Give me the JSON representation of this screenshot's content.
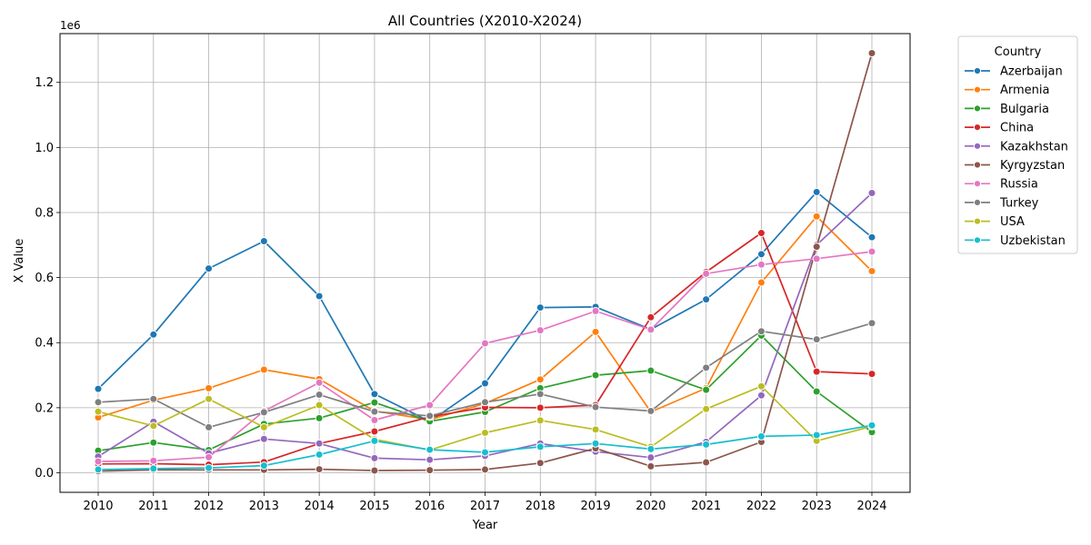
{
  "chart_data": {
    "type": "line",
    "title": "All Countries (X2010-X2024)",
    "xlabel": "Year",
    "ylabel": "X Value",
    "offset_label": "1e6",
    "ylim": [
      -60000,
      1350000
    ],
    "yticks": [
      0,
      200000,
      400000,
      600000,
      800000,
      1000000,
      1200000
    ],
    "ytick_labels": [
      "0.0",
      "0.2",
      "0.4",
      "0.6",
      "0.8",
      "1.0",
      "1.2"
    ],
    "grid": true,
    "legend_title": "Country",
    "legend_position": "outside-right",
    "categories": [
      "2010",
      "2011",
      "2012",
      "2013",
      "2014",
      "2015",
      "2016",
      "2017",
      "2018",
      "2019",
      "2020",
      "2021",
      "2022",
      "2023",
      "2024"
    ],
    "series": [
      {
        "name": "Azerbaijan",
        "color": "#1f77b4",
        "values": [
          258000,
          425000,
          628000,
          712000,
          543000,
          242000,
          158000,
          275000,
          508000,
          510000,
          441000,
          533000,
          672000,
          863000,
          724000
        ]
      },
      {
        "name": "Armenia",
        "color": "#ff7f0e",
        "values": [
          170000,
          223000,
          260000,
          317000,
          288000,
          190000,
          163000,
          213000,
          287000,
          433000,
          187000,
          260000,
          585000,
          788000,
          620000
        ]
      },
      {
        "name": "Bulgaria",
        "color": "#2ca02c",
        "values": [
          68000,
          93000,
          70000,
          150000,
          168000,
          216000,
          158000,
          187000,
          260000,
          300000,
          314000,
          255000,
          422000,
          250000,
          125000
        ]
      },
      {
        "name": "China",
        "color": "#d62728",
        "values": [
          27000,
          28000,
          25000,
          33000,
          90000,
          127000,
          172000,
          201000,
          200000,
          208000,
          478000,
          617000,
          737000,
          311000,
          304000
        ]
      },
      {
        "name": "Kazakhstan",
        "color": "#9467bd",
        "values": [
          50000,
          157000,
          60000,
          104000,
          90000,
          45000,
          40000,
          52000,
          90000,
          65000,
          47000,
          95000,
          238000,
          700000,
          860000
        ]
      },
      {
        "name": "Kyrgyzstan",
        "color": "#8c564b",
        "values": [
          5000,
          9000,
          9000,
          9000,
          11000,
          7000,
          8000,
          10000,
          30000,
          75000,
          20000,
          32000,
          95000,
          695000,
          1290000
        ]
      },
      {
        "name": "Russia",
        "color": "#e377c2",
        "values": [
          35000,
          37000,
          48000,
          190000,
          277000,
          162000,
          208000,
          398000,
          438000,
          497000,
          440000,
          612000,
          640000,
          658000,
          680000
        ]
      },
      {
        "name": "Turkey",
        "color": "#7f7f7f",
        "values": [
          217000,
          227000,
          140000,
          186000,
          240000,
          188000,
          175000,
          217000,
          242000,
          202000,
          190000,
          323000,
          435000,
          410000,
          460000
        ]
      },
      {
        "name": "USA",
        "color": "#bcbd22",
        "values": [
          188000,
          144000,
          227000,
          140000,
          208000,
          103000,
          70000,
          123000,
          161000,
          133000,
          80000,
          196000,
          266000,
          98000,
          143000
        ]
      },
      {
        "name": "Uzbekistan",
        "color": "#17becf",
        "values": [
          10000,
          13000,
          15000,
          22000,
          56000,
          98000,
          71000,
          63000,
          80000,
          90000,
          73000,
          87000,
          112000,
          116000,
          146000
        ]
      }
    ]
  }
}
